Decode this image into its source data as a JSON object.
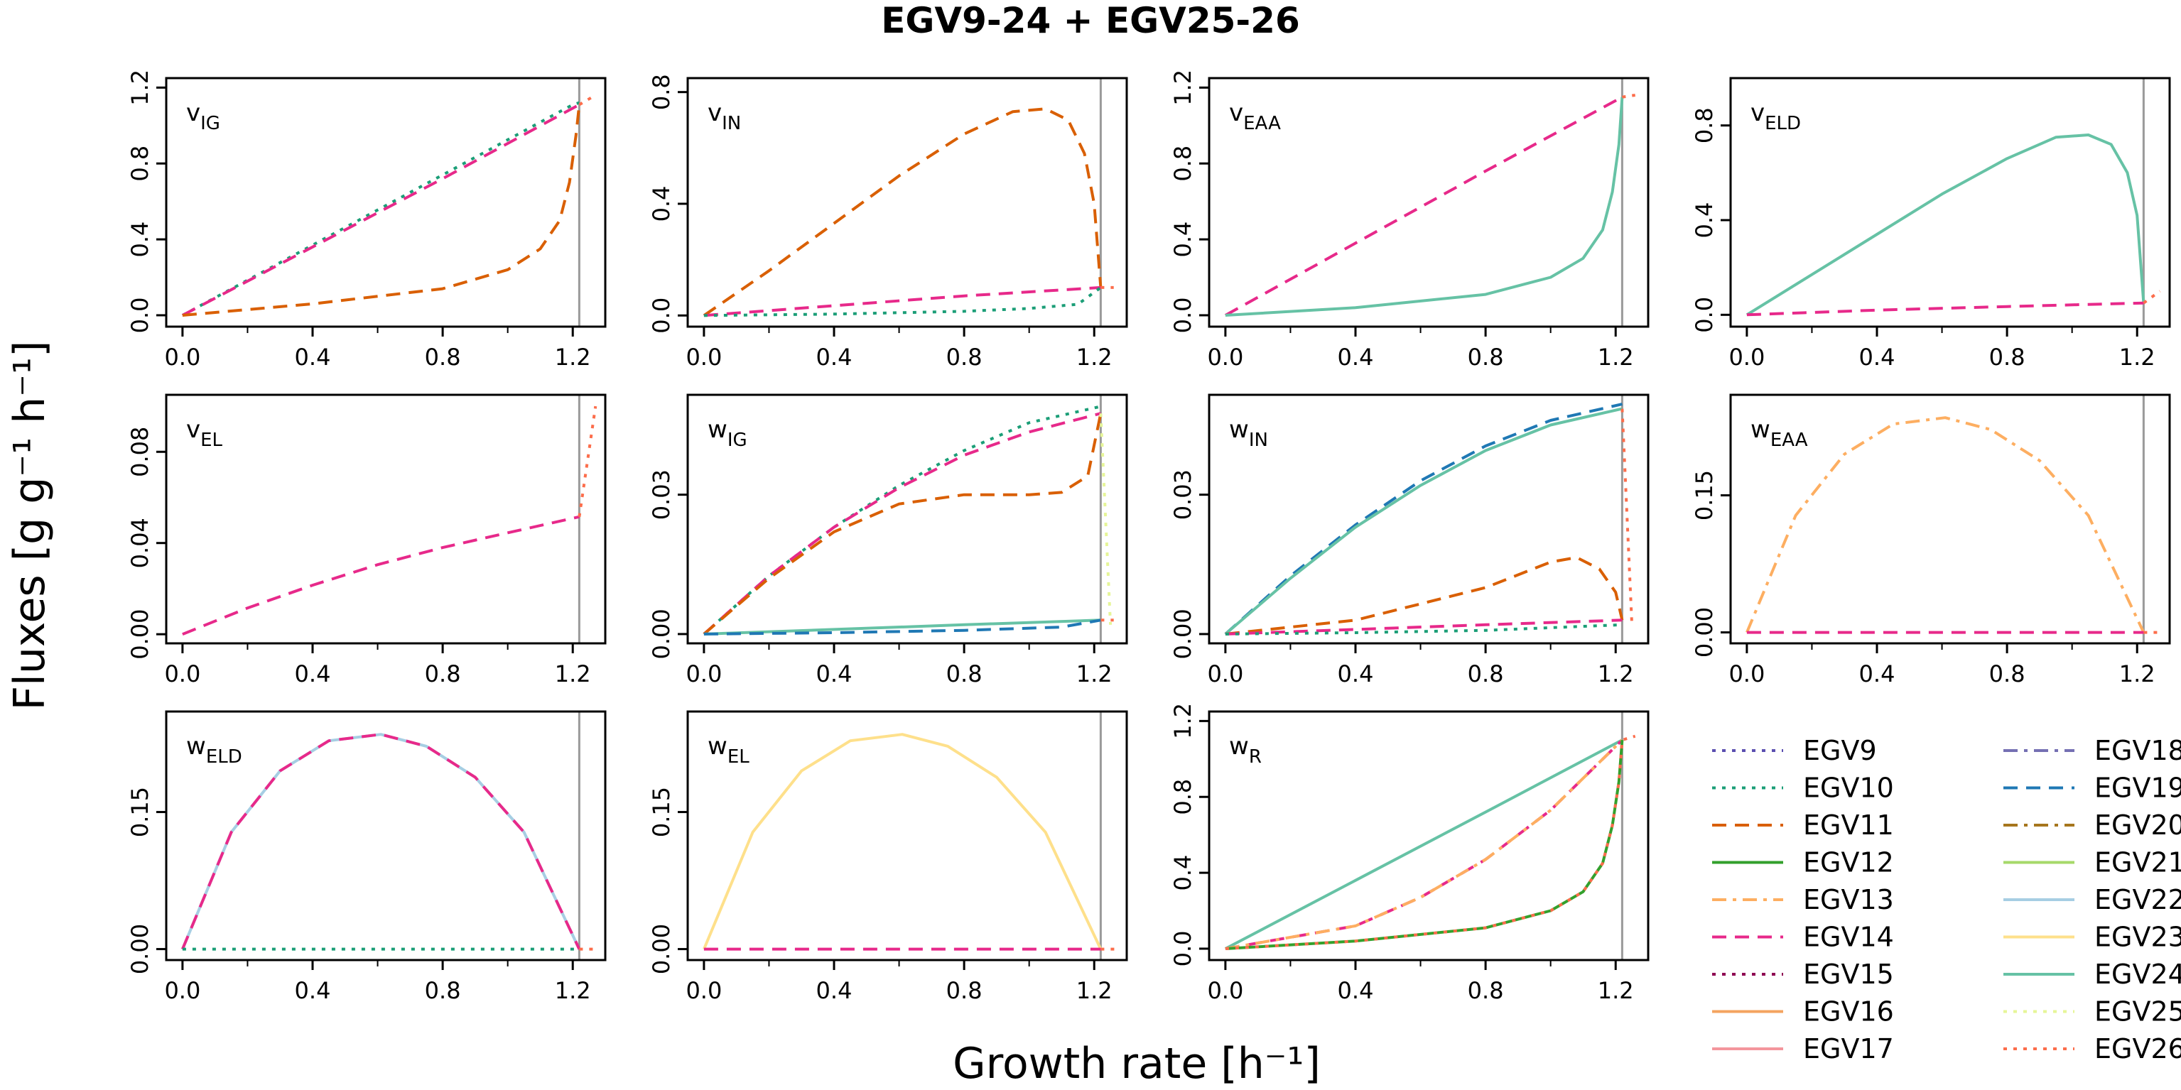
{
  "figure": {
    "title": "EGV9-24 + EGV25-26",
    "xlabel": "Growth rate [h⁻¹]",
    "ylabel": "Fluxes [g g⁻¹ h⁻¹]"
  },
  "legend": {
    "columns": [
      [
        "EGV9",
        "EGV10",
        "EGV11",
        "EGV12",
        "EGV13",
        "EGV14",
        "EGV15",
        "EGV16",
        "EGV17"
      ],
      [
        "EGV18",
        "EGV19",
        "EGV20",
        "EGV21",
        "EGV22",
        "EGV23",
        "EGV24",
        "EGV25",
        "EGV26"
      ]
    ]
  },
  "series_styles": {
    "EGV9": {
      "color": "#5b4fb0",
      "dash": "dot"
    },
    "EGV10": {
      "color": "#1b9e77",
      "dash": "dot"
    },
    "EGV11": {
      "color": "#d95f02",
      "dash": "dash"
    },
    "EGV12": {
      "color": "#33a02c",
      "dash": "solid"
    },
    "EGV13": {
      "color": "#fdae61",
      "dash": "dashdot"
    },
    "EGV14": {
      "color": "#e7298a",
      "dash": "dash"
    },
    "EGV15": {
      "color": "#8e0152",
      "dash": "dot"
    },
    "EGV16": {
      "color": "#f4a460",
      "dash": "solid"
    },
    "EGV17": {
      "color": "#f4969d",
      "dash": "solid"
    },
    "EGV18": {
      "color": "#7570b3",
      "dash": "dashdot"
    },
    "EGV19": {
      "color": "#1f78b4",
      "dash": "dash"
    },
    "EGV20": {
      "color": "#a6761d",
      "dash": "dashdot"
    },
    "EGV21": {
      "color": "#a6d96a",
      "dash": "solid"
    },
    "EGV22": {
      "color": "#a6cee3",
      "dash": "solid"
    },
    "EGV23": {
      "color": "#fee08b",
      "dash": "solid"
    },
    "EGV24": {
      "color": "#66c2a5",
      "dash": "solid"
    },
    "EGV25": {
      "color": "#e6f598",
      "dash": "dot"
    },
    "EGV26": {
      "color": "#fc6d4b",
      "dash": "dot"
    }
  },
  "chart_data": [
    {
      "type": "line",
      "panel_label": "v",
      "panel_sub": "IG",
      "xlim": [
        -0.05,
        1.3
      ],
      "ylim": [
        -0.06,
        1.25
      ],
      "xticks": [
        0.0,
        0.4,
        0.8,
        1.2
      ],
      "yticks": [
        0.0,
        0.4,
        0.8,
        1.2
      ],
      "vline": 1.22,
      "series": [
        {
          "name": "EGV10",
          "x": [
            0,
            0.4,
            0.8,
            1.2,
            1.22
          ],
          "y": [
            0,
            0.37,
            0.74,
            1.11,
            1.12
          ]
        },
        {
          "name": "EGV14",
          "x": [
            0,
            0.4,
            0.8,
            1.22
          ],
          "y": [
            0,
            0.36,
            0.72,
            1.11
          ]
        },
        {
          "name": "EGV11",
          "x": [
            0,
            0.4,
            0.8,
            1.0,
            1.1,
            1.16,
            1.19,
            1.21,
            1.22
          ],
          "y": [
            0,
            0.06,
            0.14,
            0.24,
            0.35,
            0.5,
            0.7,
            0.95,
            1.11
          ]
        },
        {
          "name": "EGV26",
          "x": [
            1.22,
            1.26
          ],
          "y": [
            1.11,
            1.15
          ]
        }
      ]
    },
    {
      "type": "line",
      "panel_label": "v",
      "panel_sub": "IN",
      "xlim": [
        -0.05,
        1.3
      ],
      "ylim": [
        -0.04,
        0.85
      ],
      "xticks": [
        0.0,
        0.4,
        0.8,
        1.2
      ],
      "yticks": [
        0.0,
        0.4,
        0.8
      ],
      "vline": 1.22,
      "series": [
        {
          "name": "EGV11",
          "x": [
            0,
            0.2,
            0.4,
            0.6,
            0.8,
            0.95,
            1.05,
            1.12,
            1.17,
            1.2,
            1.22
          ],
          "y": [
            0,
            0.16,
            0.33,
            0.5,
            0.65,
            0.73,
            0.74,
            0.7,
            0.58,
            0.4,
            0.1
          ]
        },
        {
          "name": "EGV14",
          "x": [
            0,
            0.4,
            0.8,
            1.22
          ],
          "y": [
            0,
            0.035,
            0.07,
            0.1
          ]
        },
        {
          "name": "EGV10",
          "x": [
            0,
            0.4,
            0.8,
            1.0,
            1.15,
            1.22
          ],
          "y": [
            0,
            0.005,
            0.015,
            0.025,
            0.04,
            0.1
          ]
        },
        {
          "name": "EGV26",
          "x": [
            1.22,
            1.26
          ],
          "y": [
            0.1,
            0.1
          ]
        }
      ]
    },
    {
      "type": "line",
      "panel_label": "v",
      "panel_sub": "EAA",
      "xlim": [
        -0.05,
        1.3
      ],
      "ylim": [
        -0.06,
        1.25
      ],
      "xticks": [
        0.0,
        0.4,
        0.8,
        1.2
      ],
      "yticks": [
        0.0,
        0.4,
        0.8,
        1.2
      ],
      "vline": 1.22,
      "series": [
        {
          "name": "EGV14",
          "x": [
            0,
            0.4,
            0.8,
            1.22
          ],
          "y": [
            0,
            0.38,
            0.76,
            1.15
          ]
        },
        {
          "name": "EGV24",
          "x": [
            0,
            0.4,
            0.8,
            1.0,
            1.1,
            1.16,
            1.19,
            1.21,
            1.22
          ],
          "y": [
            0,
            0.04,
            0.11,
            0.2,
            0.3,
            0.45,
            0.65,
            0.9,
            1.15
          ]
        },
        {
          "name": "EGV26",
          "x": [
            1.22,
            1.26
          ],
          "y": [
            1.15,
            1.16
          ]
        }
      ]
    },
    {
      "type": "line",
      "panel_label": "v",
      "panel_sub": "ELD",
      "xlim": [
        -0.05,
        1.3
      ],
      "ylim": [
        -0.05,
        1.0
      ],
      "xticks": [
        0.0,
        0.4,
        0.8,
        1.2
      ],
      "yticks": [
        0.0,
        0.4,
        0.8
      ],
      "vline": 1.22,
      "series": [
        {
          "name": "EGV24",
          "x": [
            0,
            0.2,
            0.4,
            0.6,
            0.8,
            0.95,
            1.05,
            1.12,
            1.17,
            1.2,
            1.22
          ],
          "y": [
            0,
            0.17,
            0.34,
            0.51,
            0.66,
            0.75,
            0.76,
            0.72,
            0.6,
            0.42,
            0.05
          ]
        },
        {
          "name": "EGV14",
          "x": [
            0,
            0.4,
            0.8,
            1.22
          ],
          "y": [
            0,
            0.02,
            0.035,
            0.05
          ]
        },
        {
          "name": "EGV26",
          "x": [
            1.22,
            1.27
          ],
          "y": [
            0.05,
            0.1
          ]
        }
      ]
    },
    {
      "type": "line",
      "panel_label": "v",
      "panel_sub": "EL",
      "xlim": [
        -0.05,
        1.3
      ],
      "ylim": [
        -0.004,
        0.105
      ],
      "xticks": [
        0.0,
        0.4,
        0.8,
        1.2
      ],
      "yticks": [
        0.0,
        0.04,
        0.08
      ],
      "ytick_labels": [
        "0.00",
        "0.04",
        "0.08"
      ],
      "vline": 1.22,
      "series": [
        {
          "name": "EGV14",
          "x": [
            0,
            0.2,
            0.4,
            0.6,
            0.8,
            1.0,
            1.22
          ],
          "y": [
            0,
            0.0115,
            0.0215,
            0.0305,
            0.038,
            0.0445,
            0.0515
          ]
        },
        {
          "name": "EGV26",
          "x": [
            1.22,
            1.27
          ],
          "y": [
            0.0515,
            0.1
          ]
        }
      ]
    },
    {
      "type": "line",
      "panel_label": "w",
      "panel_sub": "IG",
      "xlim": [
        -0.05,
        1.3
      ],
      "ylim": [
        -0.002,
        0.0515
      ],
      "xticks": [
        0.0,
        0.4,
        0.8,
        1.2
      ],
      "yticks": [
        0.0,
        0.03
      ],
      "ytick_labels": [
        "0.00",
        "0.03"
      ],
      "vline": 1.22,
      "series": [
        {
          "name": "EGV10",
          "x": [
            0,
            0.2,
            0.4,
            0.6,
            0.8,
            1.0,
            1.22
          ],
          "y": [
            0,
            0.0125,
            0.023,
            0.032,
            0.0395,
            0.0455,
            0.049
          ]
        },
        {
          "name": "EGV14",
          "x": [
            0,
            0.2,
            0.4,
            0.6,
            0.8,
            1.0,
            1.22
          ],
          "y": [
            0,
            0.0125,
            0.023,
            0.0315,
            0.0385,
            0.0435,
            0.0475
          ]
        },
        {
          "name": "EGV11",
          "x": [
            0,
            0.2,
            0.4,
            0.6,
            0.8,
            1.0,
            1.1,
            1.18,
            1.22
          ],
          "y": [
            0,
            0.012,
            0.022,
            0.028,
            0.03,
            0.03,
            0.0305,
            0.034,
            0.0475
          ]
        },
        {
          "name": "EGV24",
          "x": [
            0,
            0.4,
            0.8,
            1.22
          ],
          "y": [
            0,
            0.001,
            0.002,
            0.003
          ]
        },
        {
          "name": "EGV19",
          "x": [
            0,
            0.4,
            0.8,
            1.1,
            1.22
          ],
          "y": [
            0,
            0.0003,
            0.0008,
            0.0015,
            0.003
          ]
        },
        {
          "name": "EGV25",
          "x": [
            1.22,
            1.25
          ],
          "y": [
            0.0475,
            0.002
          ]
        },
        {
          "name": "EGV26",
          "x": [
            1.22,
            1.26
          ],
          "y": [
            0.003,
            0.003
          ]
        }
      ]
    },
    {
      "type": "line",
      "panel_label": "w",
      "panel_sub": "IN",
      "xlim": [
        -0.05,
        1.3
      ],
      "ylim": [
        -0.002,
        0.0515
      ],
      "xticks": [
        0.0,
        0.4,
        0.8,
        1.2
      ],
      "yticks": [
        0.0,
        0.03
      ],
      "ytick_labels": [
        "0.00",
        "0.03"
      ],
      "vline": 1.22,
      "series": [
        {
          "name": "EGV19",
          "x": [
            0,
            0.2,
            0.4,
            0.6,
            0.8,
            1.0,
            1.22
          ],
          "y": [
            0,
            0.0125,
            0.0235,
            0.033,
            0.0405,
            0.046,
            0.0495
          ]
        },
        {
          "name": "EGV24",
          "x": [
            0,
            0.2,
            0.4,
            0.6,
            0.8,
            1.0,
            1.22
          ],
          "y": [
            0,
            0.012,
            0.023,
            0.032,
            0.0395,
            0.045,
            0.0485
          ]
        },
        {
          "name": "EGV11",
          "x": [
            0,
            0.4,
            0.8,
            1.0,
            1.08,
            1.15,
            1.2,
            1.22
          ],
          "y": [
            0,
            0.003,
            0.01,
            0.0155,
            0.0165,
            0.014,
            0.009,
            0.003
          ]
        },
        {
          "name": "EGV14",
          "x": [
            0,
            0.4,
            0.8,
            1.22
          ],
          "y": [
            0,
            0.001,
            0.002,
            0.003
          ]
        },
        {
          "name": "EGV10",
          "x": [
            0,
            0.4,
            0.8,
            1.22
          ],
          "y": [
            0,
            0.0003,
            0.0008,
            0.002
          ]
        },
        {
          "name": "EGV26",
          "x": [
            1.22,
            1.25
          ],
          "y": [
            0.0485,
            0.002
          ]
        }
      ]
    },
    {
      "type": "line",
      "panel_label": "w",
      "panel_sub": "EAA",
      "xlim": [
        -0.05,
        1.3
      ],
      "ylim": [
        -0.012,
        0.26
      ],
      "xticks": [
        0.0,
        0.4,
        0.8,
        1.2
      ],
      "yticks": [
        0.0,
        0.15
      ],
      "ytick_labels": [
        "0.00",
        "0.15"
      ],
      "vline": 1.22,
      "series": [
        {
          "name": "EGV13",
          "x": [
            0,
            0.15,
            0.3,
            0.45,
            0.61,
            0.75,
            0.9,
            1.05,
            1.22
          ],
          "y": [
            0,
            0.128,
            0.195,
            0.228,
            0.235,
            0.222,
            0.188,
            0.128,
            0
          ]
        },
        {
          "name": "EGV14",
          "x": [
            0,
            1.22
          ],
          "y": [
            0,
            0
          ]
        },
        {
          "name": "EGV26",
          "x": [
            1.22,
            1.27
          ],
          "y": [
            0,
            0
          ]
        }
      ]
    },
    {
      "type": "line",
      "panel_label": "w",
      "panel_sub": "ELD",
      "xlim": [
        -0.05,
        1.3
      ],
      "ylim": [
        -0.012,
        0.26
      ],
      "xticks": [
        0.0,
        0.4,
        0.8,
        1.2
      ],
      "yticks": [
        0.0,
        0.15
      ],
      "ytick_labels": [
        "0.00",
        "0.15"
      ],
      "vline": 1.22,
      "series": [
        {
          "name": "EGV22",
          "x": [
            0,
            0.15,
            0.3,
            0.45,
            0.61,
            0.75,
            0.9,
            1.05,
            1.22
          ],
          "y": [
            0,
            0.128,
            0.195,
            0.228,
            0.235,
            0.222,
            0.188,
            0.128,
            0
          ]
        },
        {
          "name": "EGV14",
          "x": [
            0,
            0.15,
            0.3,
            0.45,
            0.61,
            0.75,
            0.9,
            1.05,
            1.22
          ],
          "y": [
            0,
            0.128,
            0.195,
            0.228,
            0.235,
            0.222,
            0.188,
            0.128,
            0
          ]
        },
        {
          "name": "EGV10",
          "x": [
            0,
            1.22
          ],
          "y": [
            0,
            0
          ]
        },
        {
          "name": "EGV26",
          "x": [
            1.22,
            1.27
          ],
          "y": [
            0,
            0
          ]
        }
      ]
    },
    {
      "type": "line",
      "panel_label": "w",
      "panel_sub": "EL",
      "xlim": [
        -0.05,
        1.3
      ],
      "ylim": [
        -0.012,
        0.26
      ],
      "xticks": [
        0.0,
        0.4,
        0.8,
        1.2
      ],
      "yticks": [
        0.0,
        0.15
      ],
      "ytick_labels": [
        "0.00",
        "0.15"
      ],
      "vline": 1.22,
      "series": [
        {
          "name": "EGV23",
          "x": [
            0,
            0.15,
            0.3,
            0.45,
            0.61,
            0.75,
            0.9,
            1.05,
            1.22
          ],
          "y": [
            0,
            0.128,
            0.195,
            0.228,
            0.235,
            0.222,
            0.188,
            0.128,
            0
          ]
        },
        {
          "name": "EGV14",
          "x": [
            0,
            1.22
          ],
          "y": [
            0,
            0
          ]
        },
        {
          "name": "EGV26",
          "x": [
            1.22,
            1.27
          ],
          "y": [
            0,
            0
          ]
        }
      ]
    },
    {
      "type": "line",
      "panel_label": "w",
      "panel_sub": "R",
      "xlim": [
        -0.05,
        1.3
      ],
      "ylim": [
        -0.06,
        1.25
      ],
      "xticks": [
        0.0,
        0.4,
        0.8,
        1.2
      ],
      "yticks": [
        0.0,
        0.4,
        0.8,
        1.2
      ],
      "vline": 1.22,
      "series": [
        {
          "name": "EGV24",
          "x": [
            0,
            0.4,
            0.8,
            1.22
          ],
          "y": [
            0,
            0.36,
            0.72,
            1.1
          ]
        },
        {
          "name": "EGV14",
          "x": [
            0,
            0.4,
            0.6,
            0.8,
            1.0,
            1.22
          ],
          "y": [
            0,
            0.12,
            0.27,
            0.47,
            0.73,
            1.1
          ]
        },
        {
          "name": "EGV13",
          "x": [
            0,
            0.4,
            0.6,
            0.8,
            1.0,
            1.22
          ],
          "y": [
            0,
            0.12,
            0.27,
            0.47,
            0.73,
            1.1
          ]
        },
        {
          "name": "EGV12",
          "x": [
            0,
            0.4,
            0.8,
            1.0,
            1.1,
            1.16,
            1.19,
            1.21,
            1.22
          ],
          "y": [
            0,
            0.04,
            0.11,
            0.2,
            0.3,
            0.45,
            0.65,
            0.88,
            1.1
          ]
        },
        {
          "name": "EGV26",
          "x": [
            0,
            0.4,
            0.8,
            1.0,
            1.1,
            1.16,
            1.19,
            1.21,
            1.22,
            1.26
          ],
          "y": [
            0,
            0.04,
            0.11,
            0.2,
            0.3,
            0.45,
            0.65,
            0.88,
            1.1,
            1.12
          ]
        }
      ]
    }
  ]
}
